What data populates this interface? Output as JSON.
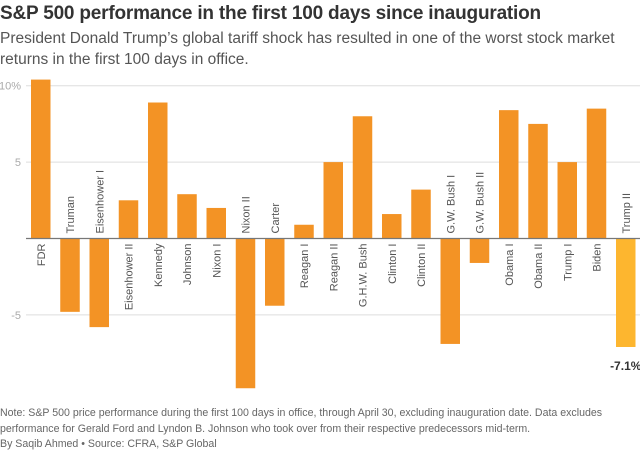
{
  "header": {
    "title": "S&P 500 performance in the first 100 days since inauguration",
    "subtitle": "President Donald Trump’s global tariff shock has resulted in one of the worst stock market returns in the first 100 days in office."
  },
  "footer": {
    "note": "Note: S&P 500 price performance during the first 100 days in office, through April 30, excluding inauguration date. Data excludes performance for Gerald Ford and Lyndon B. Johnson who took over from their respective predecessors mid-term.",
    "byline": "By Saqib Ahmed • Source: CFRA, S&P Global"
  },
  "colors": {
    "bar": "#F39325",
    "highlight": "#FDB62F",
    "grid": "#dddddd",
    "axis": "#777777"
  },
  "chart_data": {
    "type": "bar",
    "title": "S&P 500 performance in the first 100 days since inauguration",
    "xlabel": "",
    "ylabel": "",
    "ylim": [
      -10,
      10.6
    ],
    "yticks": [
      10,
      5,
      0,
      -5
    ],
    "ytick_labels": [
      "10%",
      "5",
      "",
      "-5"
    ],
    "grid": true,
    "legend": "none",
    "categories": [
      "FDR",
      "Truman",
      "Eisenhower I",
      "Eisenhower II",
      "Kennedy",
      "Johnson",
      "Nixon I",
      "Nixon II",
      "Carter",
      "Reagan I",
      "Reagan II",
      "G.H.W. Bush",
      "Clinton I",
      "Clinton II",
      "G.W. Bush I",
      "G.W. Bush II",
      "Obama I",
      "Obama II",
      "Trump I",
      "Biden",
      "Trump II"
    ],
    "values": [
      10.4,
      -4.8,
      -5.8,
      2.5,
      8.9,
      2.9,
      2.0,
      -9.8,
      -4.4,
      0.9,
      5.0,
      8.0,
      1.6,
      3.2,
      -6.9,
      -1.6,
      8.4,
      7.5,
      5.0,
      8.5,
      -7.1
    ],
    "highlight": "Trump II",
    "annotations": [
      {
        "category": "Trump II",
        "text": "-7.1%"
      }
    ]
  }
}
